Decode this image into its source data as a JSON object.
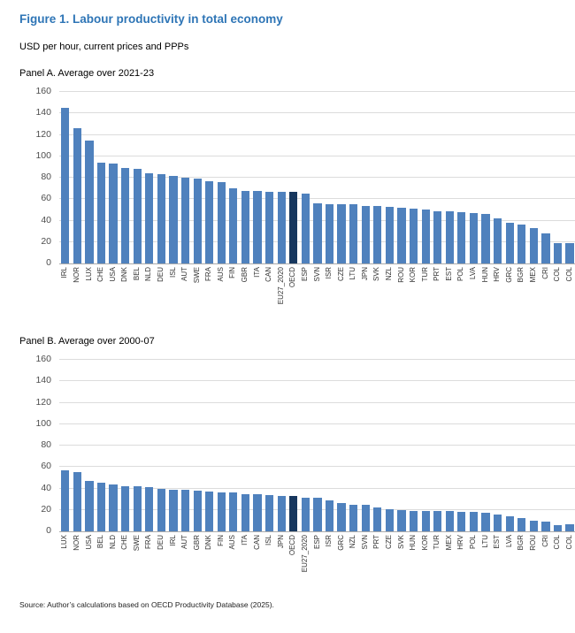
{
  "page": {
    "title": "Figure 1. Labour productivity in total economy",
    "subtitle": "USD per hour, current prices and PPPs",
    "source": "Source: Author’s calculations based on OECD Productivity Database (2025)."
  },
  "colors": {
    "title_blue": "#2E75B6",
    "bar": "#4F81BD",
    "highlight_bar": "#17375E",
    "gridline": "#DCDCDC",
    "axis": "#ABABAB"
  },
  "chart_data": [
    {
      "type": "bar",
      "title": "Panel A. Average over 2021-23",
      "ylabel": "USD per hour",
      "ylim": [
        0,
        160
      ],
      "ytick_step": 20,
      "grid": true,
      "legend": "none",
      "highlight": "OECD",
      "categories": [
        "IRL",
        "NOR",
        "LUX",
        "CHE",
        "USA",
        "DNK",
        "BEL",
        "NLD",
        "DEU",
        "ISL",
        "AUT",
        "SWE",
        "FRA",
        "AUS",
        "FIN",
        "GBR",
        "ITA",
        "CAN",
        "EU27_2020",
        "OECD",
        "ESP",
        "SVN",
        "ISR",
        "CZE",
        "LTU",
        "JPN",
        "SVK",
        "NZL",
        "ROU",
        "KOR",
        "TUR",
        "PRT",
        "EST",
        "POL",
        "LVA",
        "HUN",
        "HRV",
        "GRC",
        "BGR",
        "MEX",
        "CRI",
        "COL",
        "COL"
      ],
      "values": [
        145,
        126,
        115,
        94,
        93,
        89,
        88,
        84,
        83,
        82,
        80,
        79,
        77,
        76,
        70,
        68,
        68,
        67,
        67,
        67,
        65,
        56,
        55,
        55,
        55,
        54,
        54,
        53,
        52,
        51,
        50,
        49,
        49,
        48,
        47,
        46,
        42,
        38,
        36,
        33,
        28,
        19,
        19
      ]
    },
    {
      "type": "bar",
      "title": "Panel B. Average over 2000-07",
      "ylabel": "USD per hour",
      "ylim": [
        0,
        160
      ],
      "ytick_step": 20,
      "grid": true,
      "legend": "none",
      "highlight": "OECD",
      "categories": [
        "LUX",
        "NOR",
        "USA",
        "BEL",
        "NLD",
        "CHE",
        "SWE",
        "FRA",
        "DEU",
        "IRL",
        "AUT",
        "GBR",
        "DNK",
        "FIN",
        "AUS",
        "ITA",
        "CAN",
        "ISL",
        "JPN",
        "OECD",
        "EU27_2020",
        "ESP",
        "ISR",
        "GRC",
        "NZL",
        "SVN",
        "PRT",
        "CZE",
        "SVK",
        "HUN",
        "KOR",
        "TUR",
        "MEX",
        "HRV",
        "POL",
        "LTU",
        "EST",
        "LVA",
        "BGR",
        "ROU",
        "CRI",
        "COL",
        "COL"
      ],
      "values": [
        57,
        55,
        47,
        45,
        44,
        42,
        42,
        41,
        40,
        39,
        39,
        38,
        37,
        36,
        36,
        35,
        35,
        34,
        33,
        33,
        31,
        31,
        29,
        26,
        25,
        25,
        22,
        21,
        20,
        19,
        19,
        19,
        19,
        18,
        18,
        17,
        16,
        14,
        12,
        10,
        9,
        6,
        7
      ]
    }
  ]
}
